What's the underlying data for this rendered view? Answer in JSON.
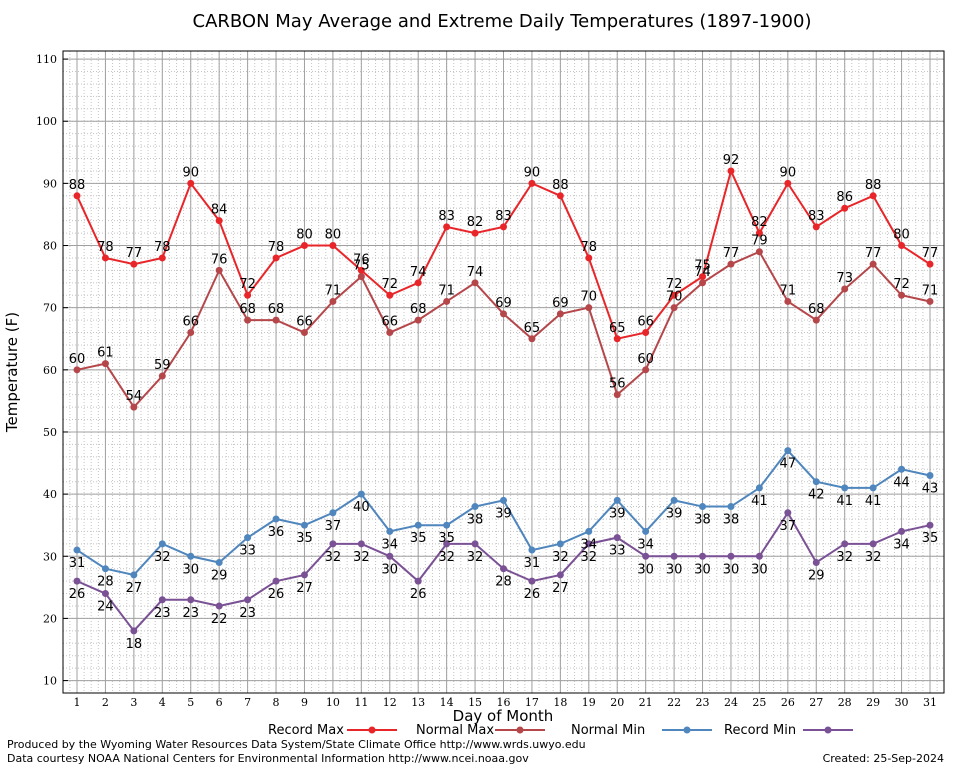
{
  "chart_data": {
    "type": "line",
    "title": "CARBON May Average and Extreme Daily Temperatures (1897-1900)",
    "xlabel": "Day of Month",
    "ylabel": "Temperature (F)",
    "xlim": [
      1,
      31
    ],
    "ylim": [
      10,
      110
    ],
    "yticks": [
      10,
      20,
      30,
      40,
      50,
      60,
      70,
      80,
      90,
      100,
      110
    ],
    "grid": true,
    "legend_position": "bottom",
    "x": [
      1,
      2,
      3,
      4,
      5,
      6,
      7,
      8,
      9,
      10,
      11,
      12,
      13,
      14,
      15,
      16,
      17,
      18,
      19,
      20,
      21,
      22,
      23,
      24,
      25,
      26,
      27,
      28,
      29,
      30,
      31
    ],
    "series": [
      {
        "name": "Record Max",
        "color": "#e8262a",
        "values": [
          88,
          78,
          77,
          78,
          90,
          84,
          72,
          78,
          80,
          80,
          76,
          72,
          74,
          83,
          82,
          83,
          90,
          88,
          78,
          65,
          66,
          72,
          75,
          92,
          82,
          90,
          83,
          86,
          88,
          80,
          77
        ]
      },
      {
        "name": "Normal Max",
        "color": "#b5474b",
        "values": [
          60,
          61,
          54,
          59,
          66,
          76,
          68,
          68,
          66,
          71,
          75,
          66,
          68,
          71,
          74,
          69,
          65,
          69,
          70,
          56,
          60,
          70,
          74,
          77,
          79,
          71,
          68,
          73,
          77,
          72,
          71
        ]
      },
      {
        "name": "Normal Min",
        "color": "#4f86bd",
        "values": [
          31,
          28,
          27,
          32,
          30,
          29,
          33,
          36,
          35,
          37,
          40,
          34,
          35,
          35,
          38,
          39,
          31,
          32,
          34,
          39,
          34,
          39,
          38,
          38,
          41,
          47,
          42,
          41,
          41,
          44,
          43
        ]
      },
      {
        "name": "Record Min",
        "color": "#7a5195",
        "values": [
          26,
          24,
          18,
          23,
          23,
          22,
          23,
          26,
          27,
          32,
          32,
          30,
          26,
          32,
          32,
          28,
          26,
          27,
          32,
          33,
          30,
          30,
          30,
          30,
          30,
          37,
          29,
          32,
          32,
          34,
          35
        ]
      }
    ]
  },
  "footer": {
    "credit_line1": "Produced by the Wyoming Water Resources Data System/State Climate Office http://www.wrds.uwyo.edu",
    "credit_line2": "Data courtesy NOAA National Centers for Environmental Information http://www.ncei.noaa.gov",
    "created": "Created:  25-Sep-2024"
  }
}
